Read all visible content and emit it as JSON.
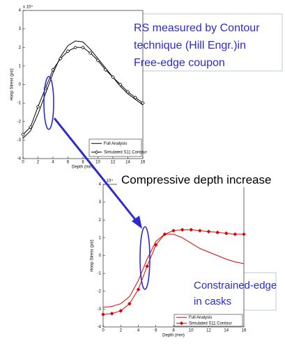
{
  "chart_data": [
    {
      "type": "line",
      "axis_multiplier": "x 10⁴",
      "ylabel": "Hoop Stress (psi)",
      "xlabel": "Depth (mm)",
      "x": [
        0,
        1,
        2,
        3,
        4,
        5,
        6,
        7,
        8,
        9,
        10,
        11,
        12,
        13,
        14,
        15,
        16
      ],
      "xlim": [
        0,
        16
      ],
      "xticks": [
        0,
        2,
        4,
        6,
        8,
        10,
        12,
        14,
        16
      ],
      "ylim": [
        -4,
        4
      ],
      "yticks": [
        -4,
        -3,
        -2,
        -1,
        0,
        1,
        2,
        3,
        4
      ],
      "legend": "lower right",
      "series": [
        {
          "name": "Full Analysis",
          "color": "#000000",
          "marker": "none",
          "values": [
            -2.9,
            -2.5,
            -1.6,
            -0.5,
            0.6,
            1.5,
            2.1,
            2.35,
            2.3,
            1.9,
            1.4,
            0.9,
            0.4,
            -0.1,
            -0.5,
            -0.8,
            -1.1
          ]
        },
        {
          "name": "Simulated S11 Contour",
          "color": "#000000",
          "marker": "diamond",
          "values": [
            -2.7,
            -2.3,
            -1.2,
            -0.2,
            0.8,
            1.4,
            1.8,
            2.0,
            2.0,
            1.7,
            1.3,
            0.8,
            0.4,
            0.0,
            -0.4,
            -0.7,
            -1.0
          ]
        }
      ],
      "annotations": [
        "RS measured by Contour",
        "technique (Hill Engr.)in",
        "Free-edge coupon"
      ]
    },
    {
      "type": "line",
      "axis_multiplier": "x 10⁴",
      "ylabel": "Hoop Stress (psi)",
      "xlabel": "Depth (mm)",
      "x": [
        0,
        1,
        2,
        3,
        4,
        5,
        6,
        7,
        8,
        9,
        10,
        11,
        12,
        13,
        14,
        15,
        16
      ],
      "xlim": [
        0,
        16
      ],
      "xticks": [
        0,
        2,
        4,
        6,
        8,
        10,
        12,
        14,
        16
      ],
      "ylim": [
        -4,
        4
      ],
      "yticks": [
        -4,
        -3,
        -2,
        -1,
        0,
        1,
        2,
        3,
        4
      ],
      "legend": "lower right",
      "series": [
        {
          "name": "Full Analysis",
          "color": "#e00000",
          "marker": "none",
          "values": [
            -2.9,
            -2.85,
            -2.7,
            -2.3,
            -1.4,
            -0.2,
            0.8,
            1.2,
            1.2,
            1.0,
            0.7,
            0.4,
            0.2,
            0.0,
            -0.2,
            -0.35,
            -0.45
          ]
        },
        {
          "name": "Simulated S11 Contour",
          "color": "#e00000",
          "marker": "diamond",
          "values": [
            -3.3,
            -3.25,
            -3.1,
            -2.7,
            -1.9,
            -0.6,
            0.6,
            1.2,
            1.4,
            1.45,
            1.45,
            1.4,
            1.35,
            1.3,
            1.25,
            1.2,
            1.2
          ]
        }
      ],
      "annotations": [
        "Compressive depth increase",
        "Constrained-edge",
        "in casks"
      ]
    }
  ]
}
